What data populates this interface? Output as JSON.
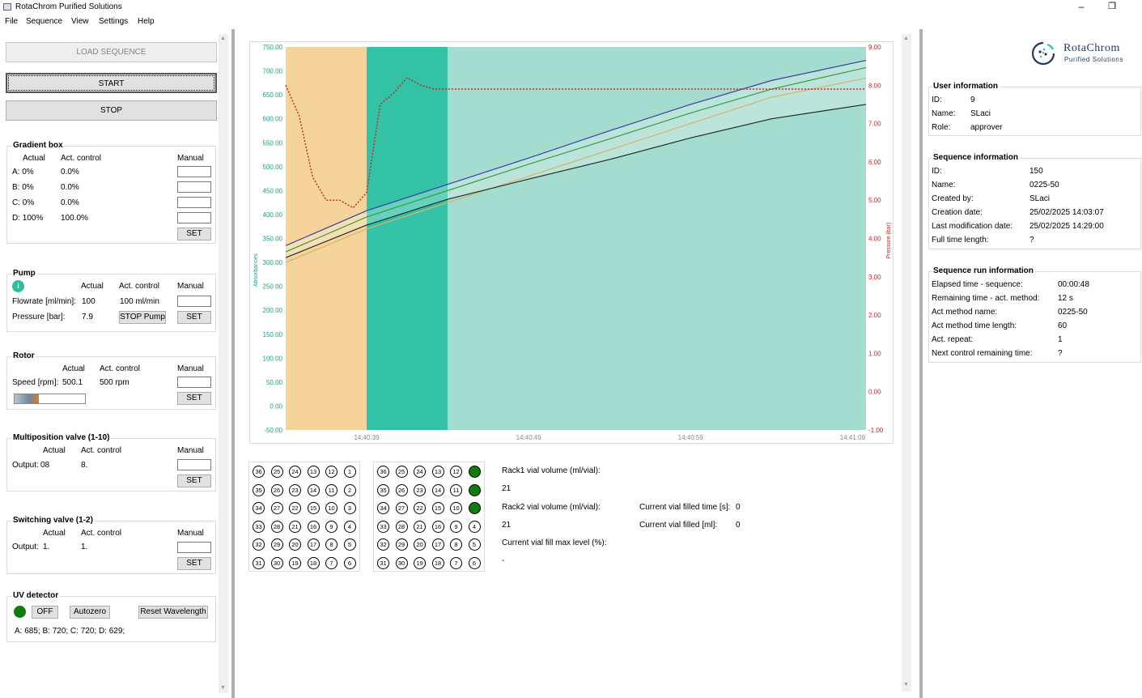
{
  "window": {
    "title": "RotaChrom Purified Solutions",
    "minimize": "–",
    "restore": "❐"
  },
  "menu": [
    "File",
    "Sequence",
    "View",
    "Settings",
    "Help"
  ],
  "controls": {
    "load": "LOAD SEQUENCE",
    "start": "START",
    "stop": "STOP"
  },
  "gradient": {
    "title": "Gradient box",
    "col_actual": "Actual",
    "col_control": "Act. control",
    "col_manual": "Manual",
    "rows": [
      {
        "actual": "A: 0%",
        "control": "0.0%"
      },
      {
        "actual": "B: 0%",
        "control": "0.0%"
      },
      {
        "actual": "C: 0%",
        "control": "0.0%"
      },
      {
        "actual": "D: 100%",
        "control": "100.0%"
      }
    ],
    "set": "SET"
  },
  "pump": {
    "title": "Pump",
    "col_actual": "Actual",
    "col_control": "Act. control",
    "col_manual": "Manual",
    "flow_label": "Flowrate [ml/min]:",
    "flow_actual": "100",
    "flow_control": "100 ml/min",
    "pressure_label": "Pressure [bar]:",
    "pressure_actual": "7.9",
    "stop_pump": "STOP Pump",
    "set": "SET",
    "status_color": "#2bbfa0"
  },
  "rotor": {
    "title": "Rotor",
    "col_actual": "Actual",
    "col_control": "Act. control",
    "col_manual": "Manual",
    "speed_label": "Speed [rpm]:",
    "speed_actual": "500.1",
    "speed_control": "500 rpm",
    "set": "SET"
  },
  "mpvalve": {
    "title": "Multiposition valve (1-10)",
    "col_actual": "Actual",
    "col_control": "Act. control",
    "col_manual": "Manual",
    "output_label": "Output:",
    "output_actual": "08",
    "output_control": "8.",
    "set": "SET"
  },
  "swvalve": {
    "title": "Switching valve (1-2)",
    "col_actual": "Actual",
    "col_control": "Act. control",
    "col_manual": "Manual",
    "output_label": "Output:",
    "output_actual": "1.",
    "output_control": "1.",
    "set": "SET"
  },
  "uv": {
    "title": "UV detector",
    "off": "OFF",
    "autozero": "Autozero",
    "reset": "Reset Wavelength",
    "wavelengths": "A: 685; B: 720; C: 720; D: 629;",
    "status_color": "#107c10"
  },
  "chart_data": {
    "type": "line",
    "y_ticks": [
      "750.00",
      "700.00",
      "650.00",
      "600.00",
      "550.00",
      "500.00",
      "450.00",
      "400.00",
      "350.00",
      "300.00",
      "250.00",
      "200.00",
      "150.00",
      "100.00",
      "50.00",
      "0.00",
      "-50.00"
    ],
    "y2_ticks": [
      "9.00",
      "8.00",
      "7.00",
      "6.00",
      "5.00",
      "4.00",
      "3.00",
      "2.00",
      "1.00",
      "0.00",
      "-1.00"
    ],
    "x_ticks": [
      "14:40:39",
      "14:40:49",
      "14:40:59",
      "14:41:09"
    ],
    "ylabel": "Absorbances",
    "y2label": "Pressure (bar)",
    "ylim": [
      -50,
      750
    ],
    "y2lim": [
      -1,
      9
    ],
    "x_range": [
      0,
      43
    ],
    "fractions": [
      {
        "from": 0,
        "to": 6,
        "color": "#f5d49b"
      },
      {
        "from": 6,
        "to": 12,
        "color": "#33c2a6"
      },
      {
        "from": 12,
        "to": 43,
        "color": "#a4dccf"
      }
    ],
    "series": [
      {
        "color": "#3a3f9e",
        "x": [
          0,
          6,
          12,
          18,
          24,
          30,
          36,
          43
        ],
        "y": [
          335,
          408,
          463,
          518,
          575,
          630,
          680,
          722
        ]
      },
      {
        "color": "#3c9a48",
        "x": [
          0,
          6,
          12,
          18,
          24,
          30,
          36,
          43
        ],
        "y": [
          322,
          395,
          450,
          505,
          558,
          612,
          662,
          707
        ]
      },
      {
        "color": "#d9b26a",
        "x": [
          0,
          6,
          12,
          18,
          24,
          30,
          36,
          43
        ],
        "y": [
          300,
          370,
          425,
          480,
          535,
          590,
          645,
          685
        ]
      },
      {
        "color": "#1f2b2b",
        "x": [
          0,
          6,
          12,
          18,
          24,
          30,
          36,
          43
        ],
        "y": [
          310,
          378,
          432,
          474,
          515,
          560,
          600,
          630
        ]
      }
    ],
    "pressure": {
      "color": "#c62828",
      "x": [
        0,
        1,
        2,
        3,
        4,
        5,
        6,
        7,
        8,
        9,
        10,
        11,
        12,
        20,
        30,
        43
      ],
      "y": [
        8.0,
        7.2,
        5.6,
        5.0,
        5.0,
        4.8,
        5.2,
        7.5,
        7.8,
        8.2,
        8.0,
        7.9,
        7.9,
        7.9,
        7.9,
        7.9
      ]
    }
  },
  "racks": {
    "rows": [
      [
        36,
        25,
        24,
        13,
        12,
        1
      ],
      [
        35,
        26,
        23,
        14,
        11,
        2
      ],
      [
        34,
        27,
        22,
        15,
        10,
        3
      ],
      [
        33,
        28,
        21,
        16,
        9,
        4
      ],
      [
        32,
        29,
        20,
        17,
        8,
        5
      ],
      [
        31,
        30,
        19,
        18,
        7,
        6
      ]
    ],
    "rack2_filled": [
      1,
      2,
      3
    ],
    "filled_color": "#107c10"
  },
  "vial_info": {
    "rack1_label": "Rack1 vial volume (ml/vial):",
    "rack1_value": "21",
    "rack2_label": "Rack2 vial volume (ml/vial):",
    "rack2_value": "21",
    "fill_label": "Current vial fill max level (%):",
    "fill_value": "-",
    "filled_time_label": "Current vial filled time [s]:",
    "filled_time_value": "0",
    "filled_ml_label": "Current vial filled [ml]:",
    "filled_ml_value": "0"
  },
  "logo": {
    "name": "RotaChrom",
    "sub": "Purified Solutions"
  },
  "user": {
    "title": "User information",
    "id_label": "ID:",
    "id": "9",
    "name_label": "Name:",
    "name": "SLaci",
    "role_label": "Role:",
    "role": "approver"
  },
  "sequence": {
    "title": "Sequence information",
    "items": [
      {
        "k": "ID:",
        "v": "150"
      },
      {
        "k": "Name:",
        "v": "0225-50"
      },
      {
        "k": "Created by:",
        "v": "SLaci"
      },
      {
        "k": "Creation date:",
        "v": "25/02/2025 14:03:07"
      },
      {
        "k": "Last modification date:",
        "v": "25/02/2025 14:29:00"
      },
      {
        "k": "Full time length:",
        "v": "?"
      }
    ]
  },
  "run": {
    "title": "Sequence run information",
    "items": [
      {
        "k": "Elapsed time - sequence:",
        "v": "00:00:48"
      },
      {
        "k": "Remaining time - act. method:",
        "v": "12 s"
      },
      {
        "k": "Act method name:",
        "v": "0225-50"
      },
      {
        "k": "Act method time length:",
        "v": "60"
      },
      {
        "k": "Act. repeat:",
        "v": "1"
      },
      {
        "k": "Next control remaining time:",
        "v": "?"
      }
    ]
  }
}
